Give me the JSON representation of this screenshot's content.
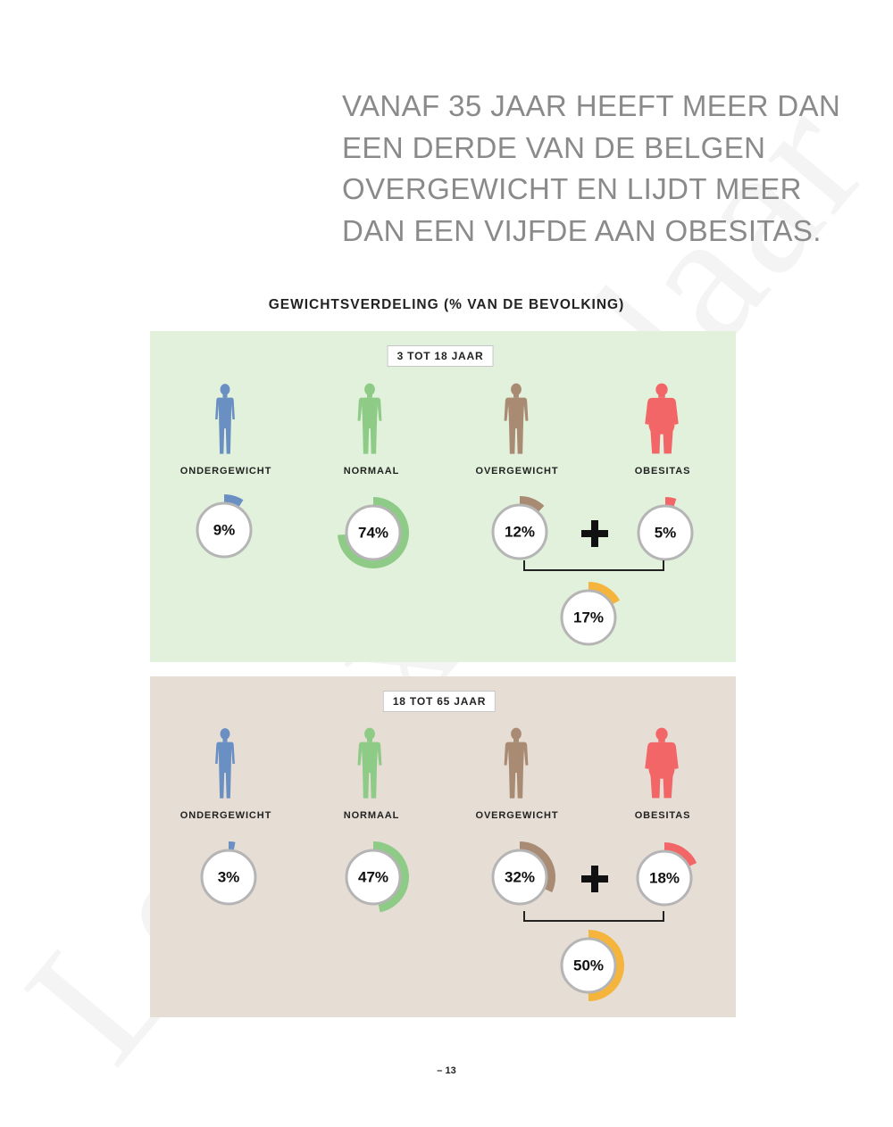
{
  "headline": {
    "lines": [
      "VANAF 35 JAAR HEEFT MEER DAN",
      "EEN DERDE VAN DE BELGEN",
      "OVERGEWICHT EN LIJDT MEER",
      "DAN EEN VIJFDE AAN OBESITAS."
    ]
  },
  "watermark": "Leesexemplaar",
  "page_number": "– 13",
  "colors": {
    "ondergewicht": "#6a8fc2",
    "normaal": "#8dcb86",
    "overgewicht": "#a98a72",
    "obesitas": "#f26668",
    "total": "#f5b43b",
    "panel_a": "#e2f1dc",
    "panel_b": "#e6ddd5"
  },
  "chart_data": {
    "type": "donut",
    "title": "GEWICHTSVERDELING (% VAN DE BEVOLKING)",
    "categories": [
      "ONDERGEWICHT",
      "NORMAAL",
      "OVERGEWICHT",
      "OBESITAS"
    ],
    "total_label": "OVERGEWICHT + OBESITAS",
    "groups": [
      {
        "name": "3 TOT 18 JAAR",
        "values": [
          9,
          74,
          12,
          5
        ],
        "labels": [
          "9%",
          "74%",
          "12%",
          "5%"
        ],
        "total": 17,
        "total_label": "17%"
      },
      {
        "name": "18 TOT 65 JAAR",
        "values": [
          3,
          47,
          32,
          18
        ],
        "labels": [
          "3%",
          "47%",
          "32%",
          "18%"
        ],
        "total": 50,
        "total_label": "50%"
      }
    ]
  }
}
